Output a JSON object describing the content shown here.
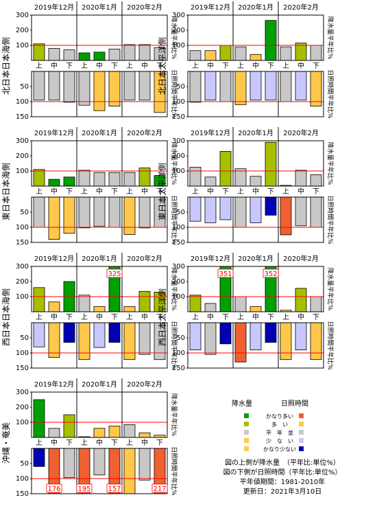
{
  "colors": {
    "plot_border": "#000000",
    "normal_line": "#ff0000",
    "callout_border": "#ff0000",
    "callout_text": "#ff0000"
  },
  "precip_colors": {
    "very_high": "#00a000",
    "high": "#a8bf00",
    "normal": "#c8c8c8",
    "low": "#ffc84a",
    "very_low": "#ffc84a"
  },
  "sun_colors": {
    "very_high": "#f06030",
    "high": "#ffc84a",
    "normal": "#c8c8c8",
    "low": "#c8c8ff",
    "very_low": "#0000b4"
  },
  "month_labels": [
    "2019年12月",
    "2020年1月",
    "2020年2月"
  ],
  "dekad_labels": [
    "上",
    "中",
    "下",
    "上",
    "中",
    "下",
    "上",
    "中",
    "下"
  ],
  "axis_labels": {
    "precip_right": "降水量平年比%",
    "sun_right": "日照時間平年比%"
  },
  "precip_ticks": [
    "300",
    "200",
    "100"
  ],
  "sun_ticks": [
    "50",
    "100",
    "150"
  ],
  "legend": {
    "precip_header": "降水量",
    "sun_header": "日照時間",
    "rows": [
      {
        "label": "かなり多い",
        "precip_color": "#00a000",
        "sun_color": "#f06030"
      },
      {
        "label": "多　い",
        "precip_color": "#a8bf00",
        "sun_color": "#ffc84a"
      },
      {
        "label": "平　年　並",
        "precip_color": "#c8c8c8",
        "sun_color": "#c8c8c8"
      },
      {
        "label": "少　な　い",
        "precip_color": "#ffc84a",
        "sun_color": "#c8c8ff"
      },
      {
        "label": "かなり少ない",
        "precip_color": "#ffc84a",
        "sun_color": "#0000b4"
      }
    ],
    "notes": [
      "図の上側が降水量　（平年比:単位%）",
      "図の下側が日照時間（平年比:単位%）",
      "平年値期間：1981-2010年",
      "更新日：2021年3月10日"
    ]
  },
  "chart_data": [
    {
      "type": "bar",
      "region": "北日本日本海側",
      "categories": [
        "上",
        "中",
        "下",
        "上",
        "中",
        "下",
        "上",
        "中",
        "下"
      ],
      "precip": {
        "ylim": [
          0,
          300
        ],
        "normal": 100,
        "values": [
          110,
          80,
          70,
          50,
          55,
          75,
          105,
          105,
          85
        ],
        "classes": [
          "high",
          "normal",
          "normal",
          "very_high",
          "very_high",
          "normal",
          "normal",
          "normal",
          "normal"
        ]
      },
      "sunshine": {
        "ylim": [
          0,
          150
        ],
        "normal": 100,
        "values": [
          95,
          95,
          102,
          112,
          130,
          115,
          95,
          95,
          136
        ],
        "classes": [
          "normal",
          "normal",
          "normal",
          "normal",
          "high",
          "high",
          "normal",
          "normal",
          "high"
        ]
      }
    },
    {
      "type": "bar",
      "region": "北日本太平洋側",
      "categories": [
        "上",
        "中",
        "下",
        "上",
        "中",
        "下",
        "上",
        "中",
        "下"
      ],
      "precip": {
        "ylim": [
          0,
          300
        ],
        "normal": 100,
        "values": [
          65,
          65,
          100,
          90,
          40,
          265,
          90,
          115,
          100
        ],
        "classes": [
          "normal",
          "low",
          "high",
          "normal",
          "low",
          "very_high",
          "normal",
          "high",
          "normal"
        ]
      },
      "sunshine": {
        "ylim": [
          0,
          150
        ],
        "normal": 100,
        "values": [
          102,
          95,
          100,
          110,
          95,
          95,
          100,
          95,
          115
        ],
        "classes": [
          "normal",
          "low",
          "normal",
          "high",
          "low",
          "low",
          "normal",
          "low",
          "high"
        ]
      }
    },
    {
      "type": "bar",
      "region": "東日本日本海側",
      "categories": [
        "上",
        "中",
        "下",
        "上",
        "中",
        "下",
        "上",
        "中",
        "下"
      ],
      "precip": {
        "ylim": [
          0,
          300
        ],
        "normal": 100,
        "values": [
          110,
          45,
          60,
          105,
          90,
          90,
          90,
          120,
          70
        ],
        "classes": [
          "high",
          "very_high",
          "very_high",
          "normal",
          "normal",
          "normal",
          "normal",
          "high",
          "very_high"
        ]
      },
      "sunshine": {
        "ylim": [
          0,
          150
        ],
        "normal": 100,
        "values": [
          100,
          140,
          120,
          102,
          97,
          100,
          124,
          102,
          100
        ],
        "classes": [
          "normal",
          "high",
          "high",
          "normal",
          "normal",
          "normal",
          "high",
          "normal",
          "normal"
        ]
      }
    },
    {
      "type": "bar",
      "region": "東日本太平洋側",
      "categories": [
        "上",
        "中",
        "下",
        "上",
        "中",
        "下",
        "上",
        "中",
        "下"
      ],
      "precip": {
        "ylim": [
          0,
          300
        ],
        "normal": 100,
        "values": [
          125,
          60,
          230,
          115,
          65,
          290,
          5,
          105,
          75
        ],
        "classes": [
          "normal",
          "normal",
          "high",
          "normal",
          "normal",
          "high",
          "normal",
          "normal",
          "normal"
        ]
      },
      "sunshine": {
        "ylim": [
          0,
          150
        ],
        "normal": 100,
        "values": [
          80,
          85,
          75,
          100,
          85,
          60,
          125,
          95,
          100
        ],
        "classes": [
          "low",
          "low",
          "low",
          "normal",
          "low",
          "very_low",
          "very_high",
          "normal",
          "normal"
        ]
      }
    },
    {
      "type": "bar",
      "region": "西日本日本海側",
      "categories": [
        "上",
        "中",
        "下",
        "上",
        "中",
        "下",
        "上",
        "中",
        "下"
      ],
      "precip": {
        "ylim": [
          0,
          300
        ],
        "normal": 100,
        "callouts": {
          "5": "325"
        },
        "values": [
          160,
          65,
          200,
          110,
          35,
          325,
          35,
          135,
          130
        ],
        "classes": [
          "high",
          "low",
          "very_high",
          "normal",
          "very_low",
          "very_high",
          "very_low",
          "high",
          "high"
        ]
      },
      "sunshine": {
        "ylim": [
          0,
          150
        ],
        "normal": 100,
        "values": [
          80,
          115,
          65,
          122,
          82,
          65,
          122,
          105,
          122
        ],
        "classes": [
          "low",
          "high",
          "very_low",
          "high",
          "low",
          "very_low",
          "high",
          "normal",
          "normal"
        ]
      }
    },
    {
      "type": "bar",
      "region": "西日本太平洋側",
      "categories": [
        "上",
        "中",
        "下",
        "上",
        "中",
        "下",
        "上",
        "中",
        "下"
      ],
      "precip": {
        "ylim": [
          0,
          300
        ],
        "normal": 100,
        "callouts": {
          "2": "351",
          "5": "352"
        },
        "values": [
          110,
          55,
          351,
          100,
          35,
          352,
          10,
          155,
          100
        ],
        "classes": [
          "high",
          "normal",
          "very_high",
          "normal",
          "low",
          "very_high",
          "low",
          "high",
          "normal"
        ]
      },
      "sunshine": {
        "ylim": [
          0,
          150
        ],
        "normal": 100,
        "values": [
          90,
          105,
          70,
          130,
          90,
          65,
          122,
          90,
          122
        ],
        "classes": [
          "low",
          "normal",
          "very_low",
          "very_high",
          "low",
          "very_low",
          "high",
          "low",
          "high"
        ]
      }
    },
    {
      "type": "bar",
      "region": "沖縄・奄美",
      "categories": [
        "上",
        "中",
        "下",
        "上",
        "中",
        "下",
        "上",
        "中",
        "下"
      ],
      "precip": {
        "ylim": [
          0,
          300
        ],
        "normal": 100,
        "values": [
          250,
          60,
          150,
          5,
          60,
          75,
          85,
          30,
          15
        ],
        "classes": [
          "very_high",
          "normal",
          "high",
          "low",
          "low",
          "low",
          "normal",
          "low",
          "low"
        ]
      },
      "sunshine": {
        "ylim": [
          0,
          150
        ],
        "normal": 100,
        "callouts": {
          "1": "176",
          "3": "195",
          "5": "157",
          "8": "217"
        },
        "values": [
          60,
          176,
          97,
          195,
          88,
          157,
          150,
          105,
          217
        ],
        "classes": [
          "very_low",
          "very_high",
          "normal",
          "very_high",
          "normal",
          "very_high",
          "high",
          "normal",
          "very_high"
        ]
      }
    }
  ]
}
